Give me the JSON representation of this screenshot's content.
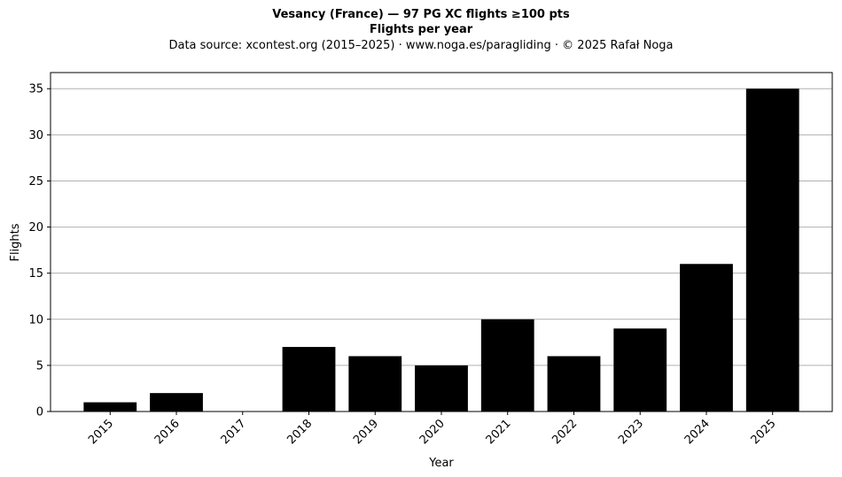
{
  "chart_data": {
    "type": "bar",
    "title": "Vesancy (France)  —  97 PG XC flights ≥100 pts",
    "subtitle": "Flights per year",
    "caption": "Data source: xcontest.org (2015–2025)  ·  www.noga.es/paragliding  ·  © 2025 Rafał Noga",
    "xlabel": "Year",
    "ylabel": "Flights",
    "categories": [
      "2015",
      "2016",
      "2017",
      "2018",
      "2019",
      "2020",
      "2021",
      "2022",
      "2023",
      "2024",
      "2025"
    ],
    "values": [
      1,
      2,
      0,
      7,
      6,
      5,
      10,
      6,
      9,
      16,
      35
    ],
    "ylim": [
      0,
      36.75
    ],
    "yticks": [
      0,
      5,
      10,
      15,
      20,
      25,
      30,
      35
    ],
    "grid": "y",
    "bar_color": "#000000",
    "grid_color": "#b0b0b0"
  }
}
